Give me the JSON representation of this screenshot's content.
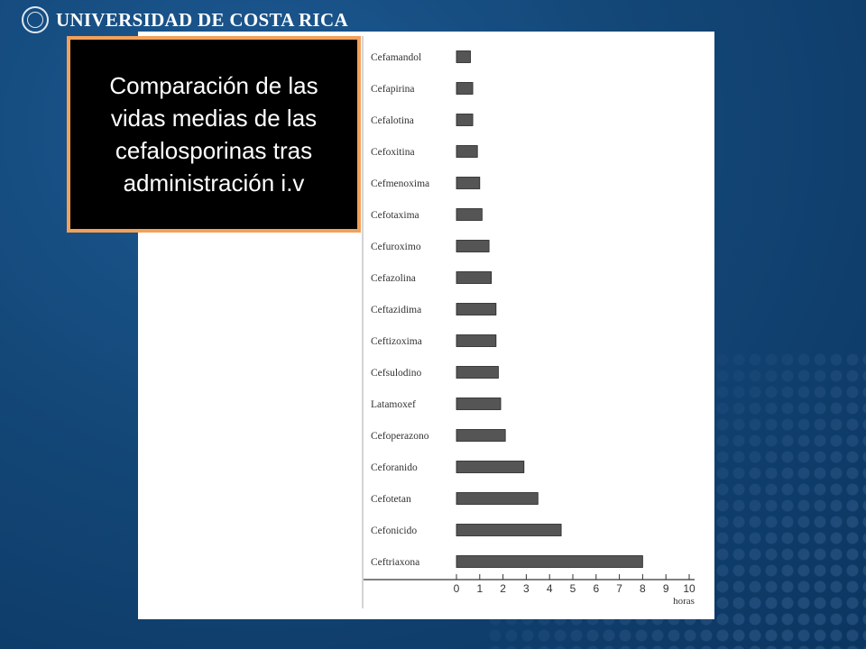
{
  "header": {
    "university_name": "UNIVERSIDAD DE COSTA RICA"
  },
  "callout": {
    "text": "Comparación de las vidas medias de las cefalosporinas tras administración i.v"
  },
  "colors": {
    "background": "#134777",
    "callout_border": "#f2a15a",
    "bar_fill": "#555555"
  },
  "chart_data": {
    "type": "bar",
    "orientation": "horizontal",
    "categories": [
      "Cefamandol",
      "Cefapirina",
      "Cefalotina",
      "Cefoxitina",
      "Cefmenoxima",
      "Cefotaxima",
      "Cefuroximo",
      "Cefazolina",
      "Ceftazidima",
      "Ceftizoxima",
      "Cefsulodino",
      "Latamoxef",
      "Cefoperazono",
      "Ceforanido",
      "Cefotetan",
      "Cefonicido",
      "Ceftriaxona"
    ],
    "values": [
      0.6,
      0.7,
      0.7,
      0.9,
      1.0,
      1.1,
      1.4,
      1.5,
      1.7,
      1.7,
      1.8,
      1.9,
      2.1,
      2.9,
      3.5,
      4.5,
      8.0
    ],
    "xlabel": "horas",
    "xlim": [
      0,
      10
    ],
    "x_ticks": [
      "0",
      "1",
      "2",
      "3",
      "4",
      "5",
      "6",
      "7",
      "8",
      "9",
      "10"
    ],
    "grid": false
  }
}
